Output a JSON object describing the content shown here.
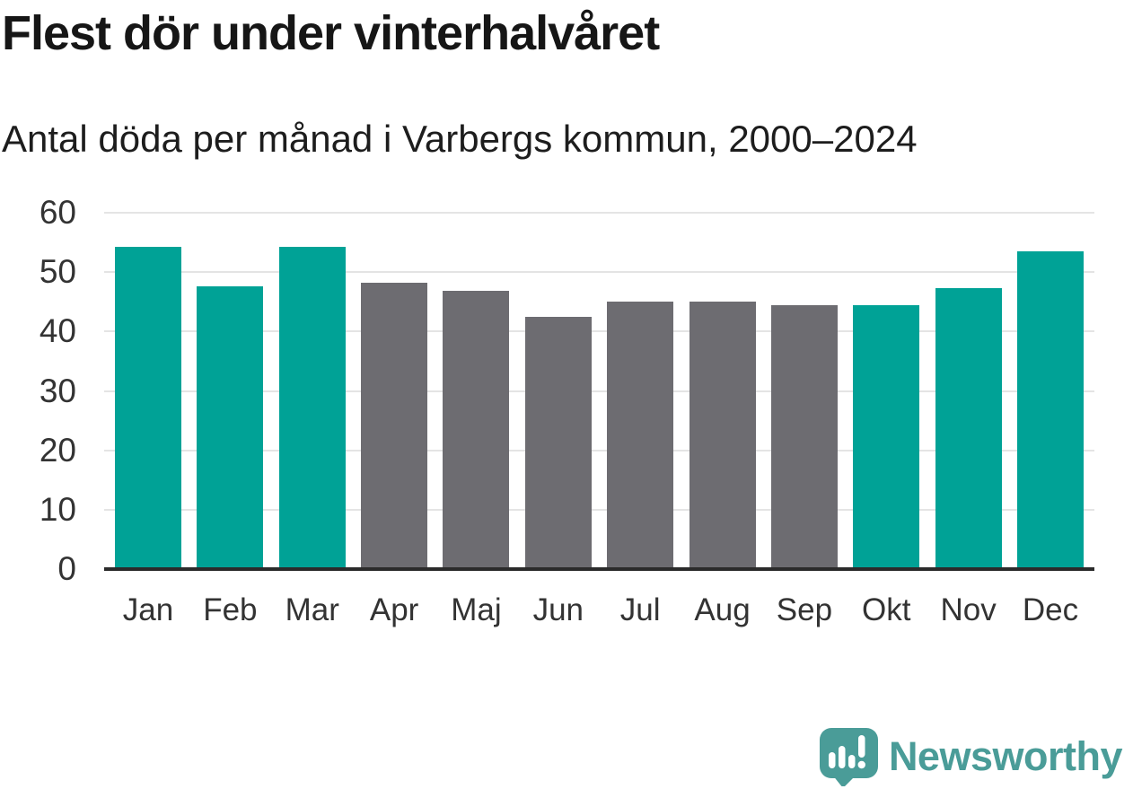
{
  "header": {
    "title": "Flest dör under vinterhalvåret",
    "subtitle": "Antal döda per månad i Varbergs kommun, 2000–2024"
  },
  "chart_data": {
    "type": "bar",
    "title": "Flest dör under vinterhalvåret",
    "subtitle": "Antal döda per månad i Varbergs kommun, 2000–2024",
    "categories": [
      "Jan",
      "Feb",
      "Mar",
      "Apr",
      "Maj",
      "Jun",
      "Jul",
      "Aug",
      "Sep",
      "Okt",
      "Nov",
      "Dec"
    ],
    "values": [
      54.2,
      47.6,
      54.3,
      48.2,
      46.8,
      42.4,
      45.1,
      45.1,
      44.5,
      44.4,
      47.3,
      53.5
    ],
    "bar_colors": [
      "#00a296",
      "#00a296",
      "#00a296",
      "#6d6c71",
      "#6d6c71",
      "#6d6c71",
      "#6d6c71",
      "#6d6c71",
      "#6d6c71",
      "#00a296",
      "#00a296",
      "#00a296"
    ],
    "xlabel": "",
    "ylabel": "",
    "ylim": [
      0,
      60
    ],
    "yticks": [
      0,
      10,
      20,
      30,
      40,
      50,
      60
    ],
    "grid": true,
    "legend_position": "none"
  },
  "colors": {
    "winter_bar": "#00a296",
    "summer_bar": "#6d6c71",
    "gridline": "#e4e4e4",
    "axis_line": "#2b2b2b",
    "tick_text": "#333333",
    "title_text": "#161616",
    "background": "#ffffff",
    "brand": "#4a9c98"
  },
  "footer": {
    "brand": "Newsworthy",
    "logo_icon": "newsworthy-speech-bubble-bar-chart-icon"
  }
}
